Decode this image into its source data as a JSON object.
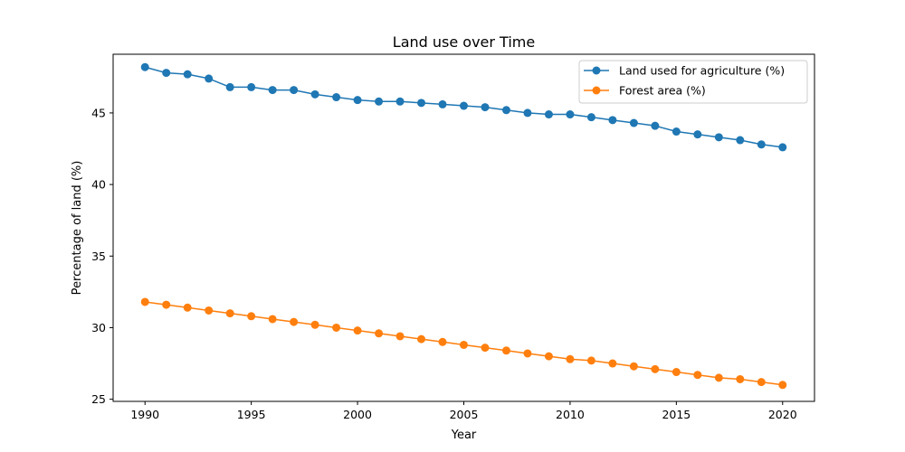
{
  "chart_data": {
    "type": "line",
    "title": "Land use over Time",
    "xlabel": "Year",
    "ylabel": "Percentage of land (%)",
    "xlim": [
      1988.5,
      2021.5
    ],
    "ylim": [
      24.85,
      49.1
    ],
    "xticks": [
      1990,
      1995,
      2000,
      2005,
      2010,
      2015,
      2020
    ],
    "yticks": [
      25,
      30,
      35,
      40,
      45
    ],
    "grid": false,
    "legend_position": "top-right",
    "x": [
      1990,
      1991,
      1992,
      1993,
      1994,
      1995,
      1996,
      1997,
      1998,
      1999,
      2000,
      2001,
      2002,
      2003,
      2004,
      2005,
      2006,
      2007,
      2008,
      2009,
      2010,
      2011,
      2012,
      2013,
      2014,
      2015,
      2016,
      2017,
      2018,
      2019,
      2020
    ],
    "series": [
      {
        "name": "Land used for agriculture (%)",
        "color": "#1f77b4",
        "values": [
          48.2,
          47.8,
          47.7,
          47.4,
          46.8,
          46.8,
          46.6,
          46.6,
          46.3,
          46.1,
          45.9,
          45.8,
          45.8,
          45.7,
          45.6,
          45.5,
          45.4,
          45.2,
          45.0,
          44.9,
          44.9,
          44.7,
          44.5,
          44.3,
          44.1,
          43.7,
          43.5,
          43.3,
          43.1,
          42.8,
          42.6
        ]
      },
      {
        "name": "Forest area (%)",
        "color": "#ff7f0e",
        "values": [
          31.8,
          31.6,
          31.4,
          31.2,
          31.0,
          30.8,
          30.6,
          30.4,
          30.2,
          30.0,
          29.8,
          29.6,
          29.4,
          29.2,
          29.0,
          28.8,
          28.6,
          28.4,
          28.2,
          28.0,
          27.8,
          27.7,
          27.5,
          27.3,
          27.1,
          26.9,
          26.7,
          26.5,
          26.4,
          26.2,
          26.0
        ]
      }
    ]
  }
}
